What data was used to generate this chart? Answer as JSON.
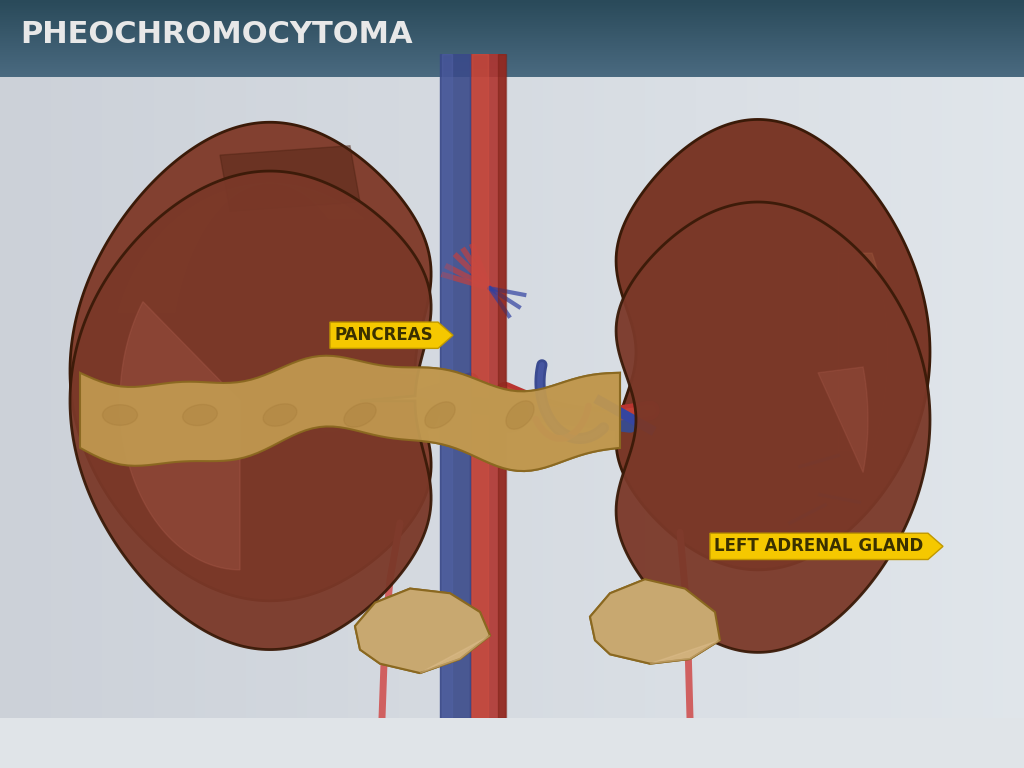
{
  "title": "PHEOCHROMOCYTOMA",
  "title_color": "#e8e8e8",
  "header_color_top": "#2a4a5a",
  "header_color_bottom": "#3a6070",
  "bg_color_left": "#c8ced4",
  "bg_color_right": "#e0e4e8",
  "label_pancreas": "PANCREAS",
  "label_adrenal": "LEFT ADRENAL GLAND",
  "label_bg_color": "#f5c800",
  "label_text_color": "#5a4a00",
  "kidney_color": "#8a4a3a",
  "kidney_shadow": "#5a2a1a",
  "adrenal_color": "#c8a870",
  "pancreas_color": "#c8a050",
  "artery_color": "#b03030",
  "vein_color": "#3a4a8a",
  "vein_color2": "#5060a0",
  "small_vessel_color": "#d06060"
}
